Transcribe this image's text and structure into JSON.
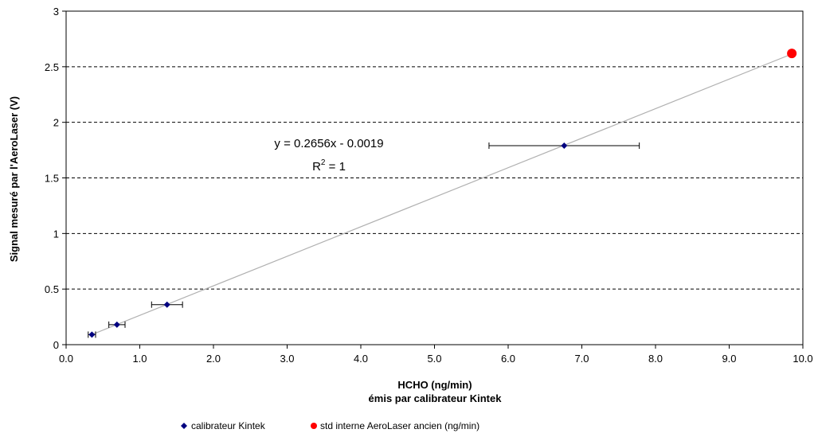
{
  "chart_data": {
    "type": "scatter",
    "title": "",
    "xlabel": "HCHO (ng/min)",
    "xlabel_line2": "émis par calibrateur Kintek",
    "ylabel": "Signal mesuré par l'AeroLaser (V)",
    "xlim": [
      0,
      10
    ],
    "ylim": [
      0,
      3
    ],
    "x_ticks": [
      "0.0",
      "1.0",
      "2.0",
      "3.0",
      "4.0",
      "5.0",
      "6.0",
      "7.0",
      "8.0",
      "9.0",
      "10.0"
    ],
    "y_ticks": [
      "0",
      "0.5",
      "1",
      "1.5",
      "2",
      "2.5",
      "3"
    ],
    "y_gridlines": [
      0.5,
      1,
      1.5,
      2,
      2.5
    ],
    "grid_style": "dashed horizontal",
    "legend_position": "bottom",
    "series": [
      {
        "name": "calibrateur Kintek",
        "color": "#000080",
        "marker": "diamond",
        "points": [
          {
            "x": 0.35,
            "y": 0.09,
            "xerr": 0.05
          },
          {
            "x": 0.69,
            "y": 0.18,
            "xerr": 0.11
          },
          {
            "x": 1.37,
            "y": 0.36,
            "xerr": 0.21
          },
          {
            "x": 6.76,
            "y": 1.79,
            "xerr": 1.02
          }
        ]
      },
      {
        "name": "std interne AeroLaser ancien (ng/min)",
        "color": "#ff0000",
        "marker": "circle",
        "points": [
          {
            "x": 9.85,
            "y": 2.62,
            "xerr": 0
          }
        ]
      }
    ],
    "trendline": {
      "slope": 0.2656,
      "intercept": -0.0019,
      "x_range": [
        0.35,
        9.85
      ],
      "color": "#b0b0b0",
      "equation": "y = 0.2656x - 0.0019",
      "r2_label": "R",
      "r2_value": " = 1"
    }
  }
}
